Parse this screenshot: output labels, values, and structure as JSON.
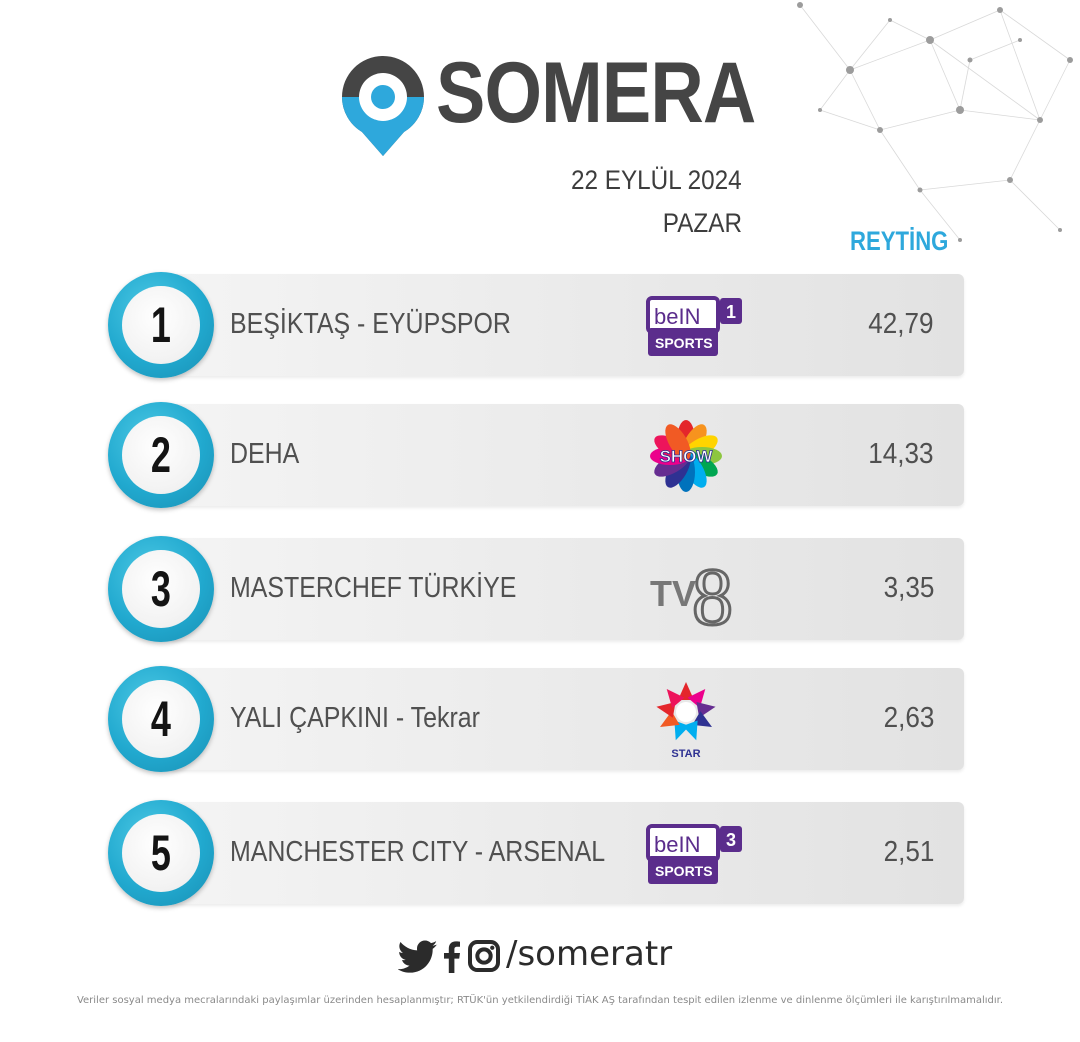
{
  "brand": {
    "name": "SOMERA"
  },
  "header": {
    "date": "22 EYLÜL 2024",
    "weekday": "PAZAR",
    "rating_label": "REYTİNG"
  },
  "ranking": [
    {
      "rank": "1",
      "title": "BEŞİKTAŞ - EYÜPSPOR",
      "channel": "beIN SPORTS 1",
      "channel_icon": "bein-sports-1-logo",
      "rating": "42,79"
    },
    {
      "rank": "2",
      "title": "DEHA",
      "channel": "SHOW",
      "channel_icon": "show-tv-logo",
      "rating": "14,33"
    },
    {
      "rank": "3",
      "title": "MASTERCHEF TÜRKİYE",
      "channel": "TV8",
      "channel_icon": "tv8-logo",
      "rating": "3,35"
    },
    {
      "rank": "4",
      "title": "YALI ÇAPKINI - Tekrar",
      "channel": "STAR",
      "channel_icon": "star-tv-logo",
      "rating": "2,63"
    },
    {
      "rank": "5",
      "title": "MANCHESTER CITY - ARSENAL",
      "channel": "beIN SPORTS 3",
      "channel_icon": "bein-sports-3-logo",
      "rating": "2,51"
    }
  ],
  "logos": {
    "bein_1": {
      "brand": "beIN",
      "sub": "SPORTS",
      "num": "1"
    },
    "show": {
      "text": "SHOW"
    },
    "tv8": {
      "tv": "TV",
      "num": "8"
    },
    "star": {
      "text": "STAR"
    },
    "bein_3": {
      "brand": "beIN",
      "sub": "SPORTS",
      "num": "3"
    }
  },
  "footer": {
    "handle": "/someratr",
    "social_icons": [
      "twitter-icon",
      "facebook-icon",
      "instagram-icon"
    ],
    "disclaimer": "Veriler sosyal medya mecralarındaki paylaşımlar üzerinden hesaplanmıştır; RTÜK'ün yetkilendirdiği TİAK AŞ tarafından tespit edilen izlenme ve dinlenme ölçümleri ile karıştırılmamalıdır."
  },
  "colors": {
    "accent": "#2ea8dc",
    "pin_dark": "#454545",
    "text": "#505050",
    "bein_purple": "#5b2d8c"
  }
}
